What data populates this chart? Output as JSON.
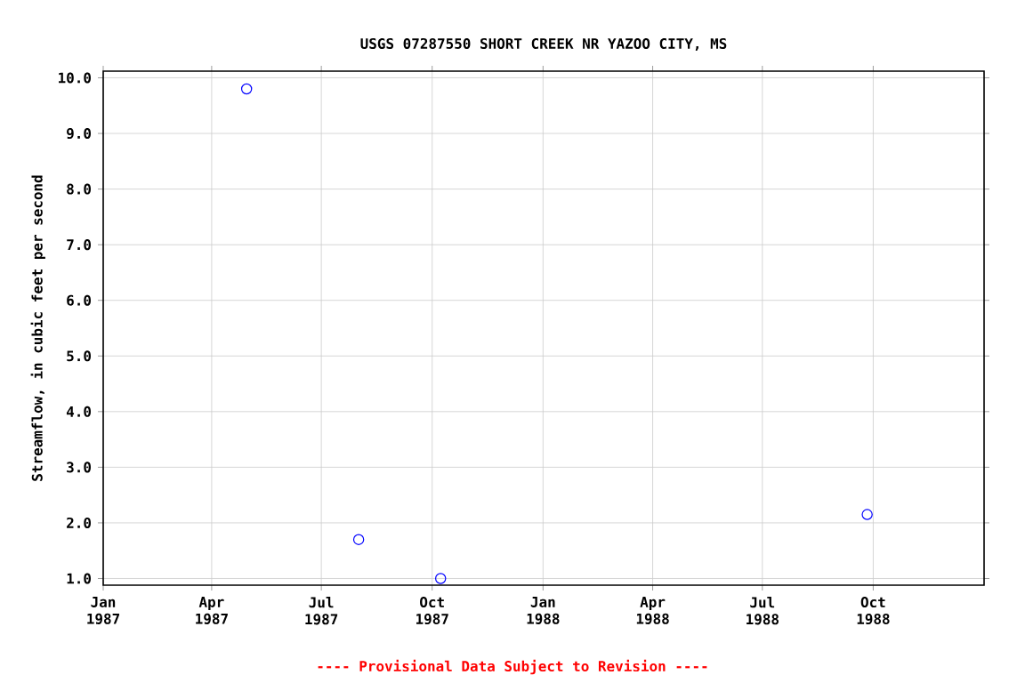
{
  "chart_data": {
    "type": "scatter",
    "title": "USGS 07287550 SHORT CREEK NR YAZOO CITY, MS",
    "ylabel": "Streamflow, in cubic feet per second",
    "annotations": [
      "---- Provisional Data Subject to Revision ----"
    ],
    "x": [
      "1987-04-30",
      "1987-08-01",
      "1987-10-08",
      "1988-09-26"
    ],
    "series": [
      {
        "color": "#0000ff",
        "values": [
          9.8,
          1.7,
          1.0,
          2.15
        ]
      }
    ],
    "marker": "circle",
    "grid": true,
    "xlim": [
      "1987-01-01",
      "1989-01-01"
    ],
    "ylim": [
      0.88,
      10.12
    ],
    "xticks": [
      {
        "value": "1987-01-01",
        "label": "Jan 1987"
      },
      {
        "value": "1987-04-01",
        "label": "Apr 1987"
      },
      {
        "value": "1987-07-01",
        "label": "Jul 1987"
      },
      {
        "value": "1987-10-01",
        "label": "Oct 1987"
      },
      {
        "value": "1988-01-01",
        "label": "Jan 1988"
      },
      {
        "value": "1988-04-01",
        "label": "Apr 1988"
      },
      {
        "value": "1988-07-01",
        "label": "Jul 1988"
      },
      {
        "value": "1988-10-01",
        "label": "Oct 1988"
      }
    ],
    "yticks": [
      {
        "value": 1.0,
        "label": "1.0"
      },
      {
        "value": 2.0,
        "label": "2.0"
      },
      {
        "value": 3.0,
        "label": "3.0"
      },
      {
        "value": 4.0,
        "label": "4.0"
      },
      {
        "value": 5.0,
        "label": "5.0"
      },
      {
        "value": 6.0,
        "label": "6.0"
      },
      {
        "value": 7.0,
        "label": "7.0"
      },
      {
        "value": 8.0,
        "label": "8.0"
      },
      {
        "value": 9.0,
        "label": "9.0"
      },
      {
        "value": 10.0,
        "label": "10.0"
      }
    ]
  }
}
